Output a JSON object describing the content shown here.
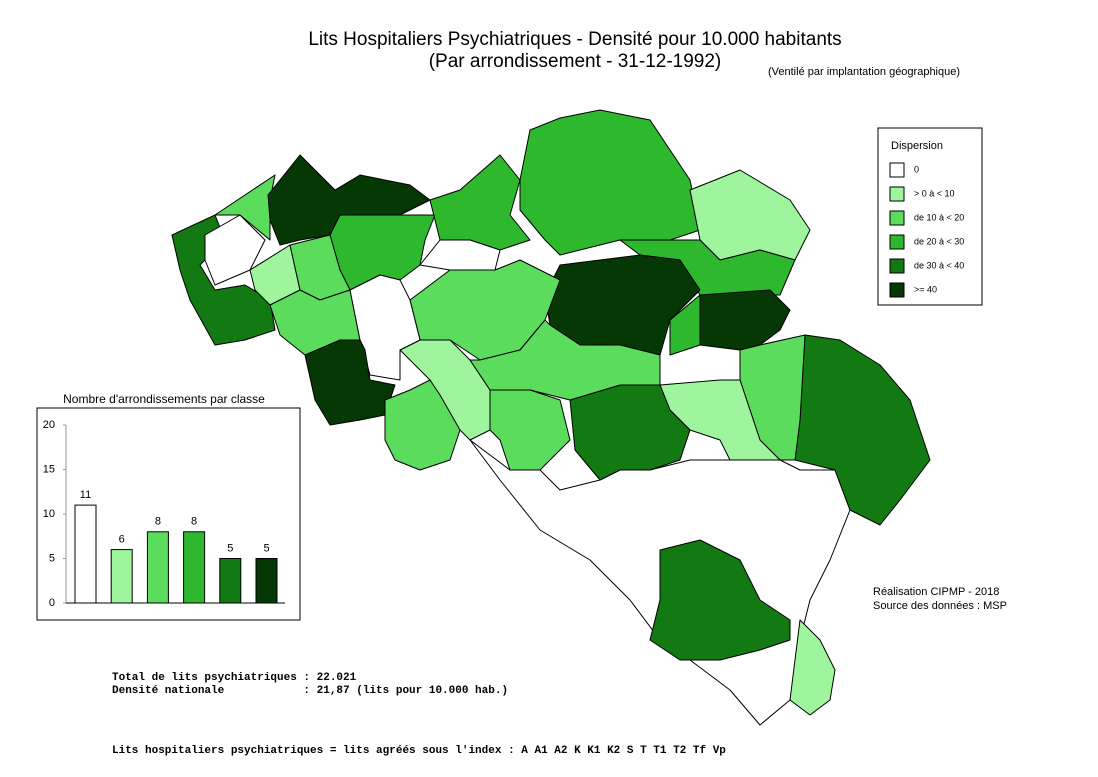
{
  "header": {
    "title": "Lits Hospitaliers Psychiatriques  - Densité pour 10.000 habitants",
    "subtitle": "(Par arrondissement - 31-12-1992)",
    "note": "(Ventilé par implantation géographique)"
  },
  "legend": {
    "title": "Dispersion",
    "items": [
      {
        "label": "0",
        "color": "#ffffff"
      },
      {
        "label": "> 0 à < 10",
        "color": "#9ef59e"
      },
      {
        "label": "de 10 à < 20",
        "color": "#5cdc5c"
      },
      {
        "label": "de 20 à < 30",
        "color": "#2db82d"
      },
      {
        "label": "de 30 à < 40",
        "color": "#137a13"
      },
      {
        "label": ">= 40",
        "color": "#053805"
      }
    ]
  },
  "chart_data": {
    "type": "bar",
    "title": "Nombre d'arrondissements par classe",
    "values": [
      11,
      6,
      8,
      8,
      5,
      5
    ],
    "colors": [
      "#ffffff",
      "#9ef59e",
      "#5cdc5c",
      "#2db82d",
      "#137a13",
      "#053805"
    ],
    "ylim": [
      0,
      20
    ],
    "yticks": [
      0,
      5,
      10,
      15,
      20
    ]
  },
  "credits": [
    "Réalisation CIPMP - 2018",
    "Source des données : MSP"
  ],
  "footer": {
    "lines": [
      "Total de lits psychiatriques : 22.021",
      "Densité nationale            : 21,87 (lits pour 10.000 hab.)"
    ],
    "definition": "Lits hospitaliers psychiatriques = lits agréés sous l'index : A A1 A2 K K1 K2 S T T1 T2 Tf Vp"
  }
}
